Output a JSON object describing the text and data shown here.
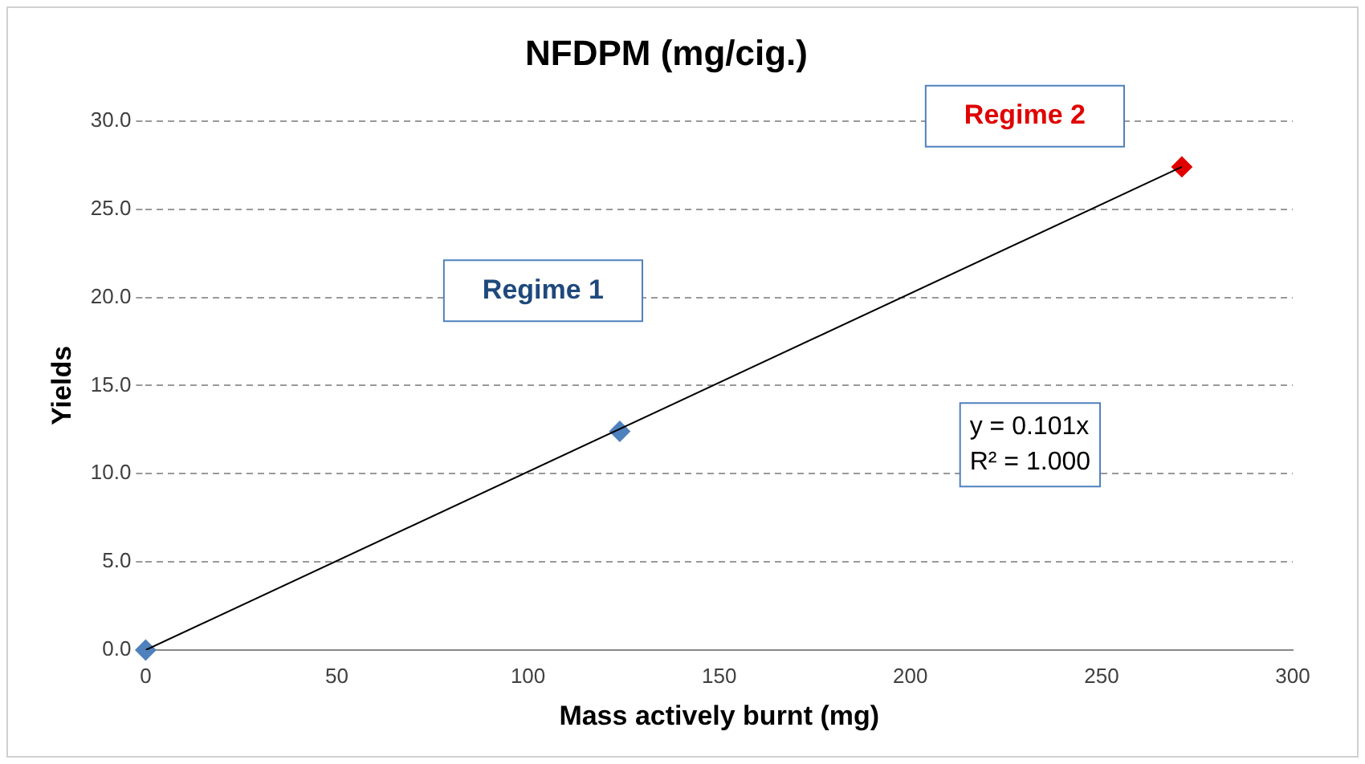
{
  "chart_data": {
    "type": "scatter",
    "title": "NFDPM (mg/cig.)",
    "xlabel": "Mass actively burnt (mg)",
    "ylabel": "Yields",
    "x": [
      0,
      124,
      271
    ],
    "series": [
      {
        "colors": [
          "#4f81bd",
          "#4f81bd",
          "#e00000"
        ],
        "values": [
          0,
          12.4,
          27.4
        ],
        "marker": "diamond"
      },
      {
        "type": "line",
        "x": [
          0,
          271
        ],
        "values": [
          0,
          27.4
        ],
        "color": "#000000",
        "marker": "none",
        "line_style": "solid"
      }
    ],
    "xlim": [
      0,
      300
    ],
    "xticks": [
      0,
      50,
      100,
      150,
      200,
      250,
      300
    ],
    "ylim": [
      0,
      30
    ],
    "yticks": [
      {
        "value": 0,
        "label": "0.0"
      },
      {
        "value": 5,
        "label": "5.0"
      },
      {
        "value": 10,
        "label": "10.0"
      },
      {
        "value": 15,
        "label": "15.0"
      },
      {
        "value": 20,
        "label": "20.0"
      },
      {
        "value": 25,
        "label": "25.0"
      },
      {
        "value": 30,
        "label": "30.0"
      }
    ],
    "grid": "y",
    "legend": false,
    "annotations": [
      "Regime 1",
      "Regime 2",
      "y = 0.101x\nR² = 1.000"
    ]
  }
}
